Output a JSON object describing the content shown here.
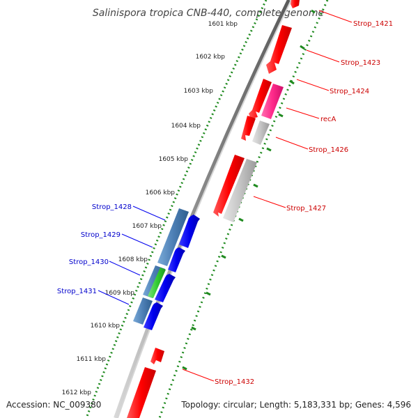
{
  "title": "Salinispora tropica CNB-440, complete genome",
  "footer": {
    "accession": "Accession: NC_009380",
    "topology": "Topology: circular; Length: 5,183,331 bp; Genes: 4,596"
  },
  "colors": {
    "backbone": "#7a7a7a",
    "forward_gene": "#ff0000",
    "reverse_gene": "#0000ee",
    "reverse_gene_alt": "#4d7fb5",
    "rna_gene": "#33cc33",
    "highlight_gene": "#ff2a8a",
    "pseudo_gene": "#bdbdbd",
    "ruler_dots": "#1f8a1f",
    "label_red": "#cc0000",
    "label_blue": "#0000cc"
  },
  "ruler_labels": [
    "1601 kbp",
    "1602 kbp",
    "1603 kbp",
    "1604 kbp",
    "1605 kbp",
    "1606 kbp",
    "1607 kbp",
    "1608 kbp",
    "1609 kbp",
    "1610 kbp",
    "1611 kbp",
    "1612 kbp"
  ],
  "gene_labels": {
    "strop_1421": "Strop_1421",
    "strop_1423": "Strop_1423",
    "strop_1424": "Strop_1424",
    "recA": "recA",
    "strop_1426": "Strop_1426",
    "strop_1427": "Strop_1427",
    "strop_1428": "Strop_1428",
    "strop_1429": "Strop_1429",
    "strop_1430": "Strop_1430",
    "strop_1431": "Strop_1431",
    "strop_1432": "Strop_1432"
  }
}
